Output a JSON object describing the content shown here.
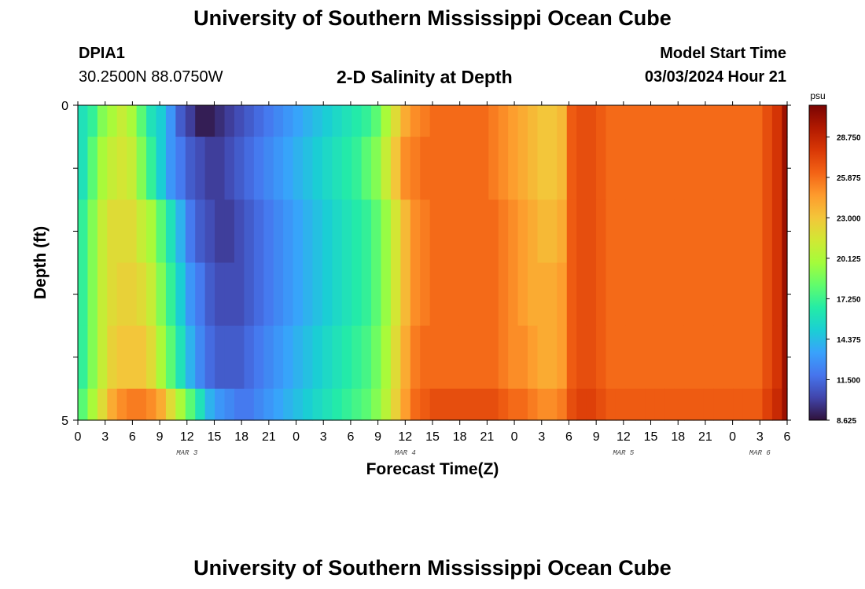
{
  "page": {
    "title": "University of Southern Mississippi Ocean Cube",
    "footer_title": "University of Southern Mississippi Ocean Cube",
    "station_id": "DPIA1",
    "station_coords": "30.2500N  88.0750W",
    "model_start_label": "Model Start Time",
    "model_start_value": "03/03/2024 Hour 21"
  },
  "chart_data": {
    "type": "heatmap",
    "title": "2-D Salinity at Depth",
    "xlabel": "Forecast Time(Z)",
    "ylabel": "Depth (ft)",
    "x_unit": "hours since 03/03/2024 00Z",
    "x_range": [
      0,
      78
    ],
    "y_range": [
      0,
      5
    ],
    "y_ticks": [
      "0",
      "5"
    ],
    "x_tick_labels": [
      "0",
      "3",
      "6",
      "9",
      "12",
      "15",
      "18",
      "21",
      "0",
      "3",
      "6",
      "9",
      "12",
      "15",
      "18",
      "21",
      "0",
      "3",
      "6",
      "9",
      "12",
      "15",
      "18",
      "21",
      "0",
      "3",
      "6"
    ],
    "day_labels": [
      {
        "label": "MAR 3",
        "hour": 12
      },
      {
        "label": "MAR 4",
        "hour": 36
      },
      {
        "label": "MAR 5",
        "hour": 60
      },
      {
        "label": "MAR 6",
        "hour": 75
      }
    ],
    "colorbar": {
      "unit": "psu",
      "min": 8.625,
      "max": 31.0,
      "ticks": [
        "8.625",
        "11.500",
        "14.375",
        "17.250",
        "20.125",
        "23.000",
        "25.875",
        "28.750"
      ],
      "colors": [
        "#30123b",
        "#4145ab",
        "#4675ed",
        "#39a2fc",
        "#1bcfd4",
        "#24eca6",
        "#61fc6c",
        "#a4fc3b",
        "#d1e834",
        "#f3c63a",
        "#fe9b2d",
        "#f36315",
        "#d93806",
        "#b11901",
        "#7a0402"
      ]
    },
    "depth_layers": [
      {
        "range": "0-0.5 ft",
        "values": [
          16,
          17,
          19,
          20,
          21,
          20,
          18,
          16,
          15,
          13,
          11,
          10,
          9,
          9,
          9.5,
          10,
          10.5,
          11,
          11.5,
          12,
          12.5,
          13,
          13.5,
          14,
          14.5,
          15,
          15.5,
          16,
          16.5,
          17,
          18,
          20,
          22,
          24,
          25,
          25.5,
          26,
          26,
          26,
          26,
          26,
          26,
          25.5,
          25,
          24.5,
          24,
          23.5,
          23,
          23,
          23.5,
          26.5,
          27,
          27,
          26.5,
          26,
          26,
          26,
          26,
          26,
          26,
          26,
          26,
          26,
          26,
          26,
          26,
          26,
          26,
          26,
          26,
          27,
          28,
          30
        ]
      },
      {
        "range": "0.5-1.5 ft",
        "values": [
          16,
          18,
          20,
          21,
          21.5,
          21,
          19,
          17,
          15,
          13,
          12,
          11,
          10.5,
          10,
          10,
          10.5,
          11,
          11.5,
          12,
          12.5,
          13,
          13.5,
          14,
          14.5,
          15,
          15.5,
          16,
          16.5,
          17,
          18,
          19,
          21,
          23,
          25,
          25.5,
          26,
          26,
          26,
          26,
          26,
          26,
          26,
          25.5,
          25,
          24.5,
          24,
          23.5,
          23,
          23,
          23.5,
          26.5,
          27,
          27,
          26.5,
          26,
          26,
          26,
          26,
          26,
          26,
          26,
          26,
          26,
          26,
          26,
          26,
          26,
          26,
          26,
          26,
          27,
          28,
          30
        ]
      },
      {
        "range": "1.5-2.5 ft",
        "values": [
          17,
          19,
          21,
          22,
          22,
          22,
          21,
          20,
          18,
          16,
          14,
          12,
          11,
          10.5,
          10,
          10,
          10.5,
          11,
          11.5,
          12,
          12.5,
          13,
          13.5,
          14,
          14.5,
          15,
          15.5,
          16,
          16.5,
          17,
          18,
          19.5,
          21.5,
          23.5,
          25,
          25.5,
          26,
          26,
          26,
          26,
          26,
          26,
          26,
          25.5,
          25,
          24.5,
          24,
          23.5,
          23.5,
          24,
          26.5,
          27,
          27,
          26.5,
          26,
          26,
          26,
          26,
          26,
          26,
          26,
          26,
          26,
          26,
          26,
          26,
          26,
          26,
          26,
          26,
          27,
          28,
          30
        ]
      },
      {
        "range": "2.5-3.5 ft",
        "values": [
          17,
          19,
          21,
          22,
          22.5,
          22.5,
          22,
          21,
          19,
          17,
          15,
          13,
          12,
          11,
          10.5,
          10.5,
          10.5,
          11,
          11.5,
          12,
          12.5,
          13,
          13.5,
          14,
          14.5,
          15,
          15.5,
          16,
          16.5,
          17,
          18,
          19.5,
          21.5,
          23.5,
          25,
          25.5,
          26,
          26,
          26,
          26,
          26,
          26,
          26,
          25.5,
          25,
          24.5,
          24,
          24,
          24,
          24.5,
          26.5,
          27,
          27,
          26.5,
          26,
          26,
          26,
          26,
          26,
          26,
          26,
          26,
          26,
          26,
          26,
          26,
          26,
          26,
          26,
          26,
          27,
          28,
          30
        ]
      },
      {
        "range": "3.5-4.5 ft",
        "values": [
          17,
          19,
          21,
          22.5,
          23,
          23,
          23,
          22,
          20,
          18,
          16,
          14,
          12.5,
          11.5,
          11,
          11,
          11,
          11.5,
          12,
          12.5,
          13,
          13.5,
          14,
          14.5,
          15,
          15.5,
          16,
          16.5,
          17,
          17.5,
          18.5,
          20,
          22,
          24,
          25.5,
          26,
          26,
          26,
          26,
          26,
          26,
          26,
          26,
          25.5,
          25,
          25,
          24.5,
          24,
          24,
          24.5,
          26.5,
          27,
          27,
          26.5,
          26,
          26,
          26,
          26,
          26,
          26,
          26,
          26,
          26,
          26,
          26,
          26,
          26,
          26,
          26,
          26,
          27,
          28,
          30
        ]
      },
      {
        "range": "4.5-5 ft",
        "values": [
          18,
          20,
          22,
          24,
          25,
          25.5,
          25.5,
          25,
          24,
          22,
          20,
          18,
          16,
          14,
          13,
          12.5,
          12,
          12,
          12.5,
          13,
          13.5,
          14,
          14.5,
          15,
          15.5,
          16,
          16.5,
          17,
          17.5,
          18,
          19,
          20.5,
          22.5,
          24.5,
          26,
          26.5,
          27,
          27,
          27,
          27,
          27,
          27,
          27,
          26.5,
          26,
          26,
          25.5,
          25,
          25,
          25.5,
          27,
          27.5,
          27.5,
          27,
          26.5,
          26.5,
          26.5,
          26.5,
          26.5,
          26.5,
          26.5,
          26.5,
          26.5,
          26.5,
          26.5,
          26.5,
          26.5,
          26.5,
          26.5,
          26.5,
          27.5,
          28.5,
          30
        ]
      }
    ],
    "grid": false,
    "legend": "right"
  }
}
